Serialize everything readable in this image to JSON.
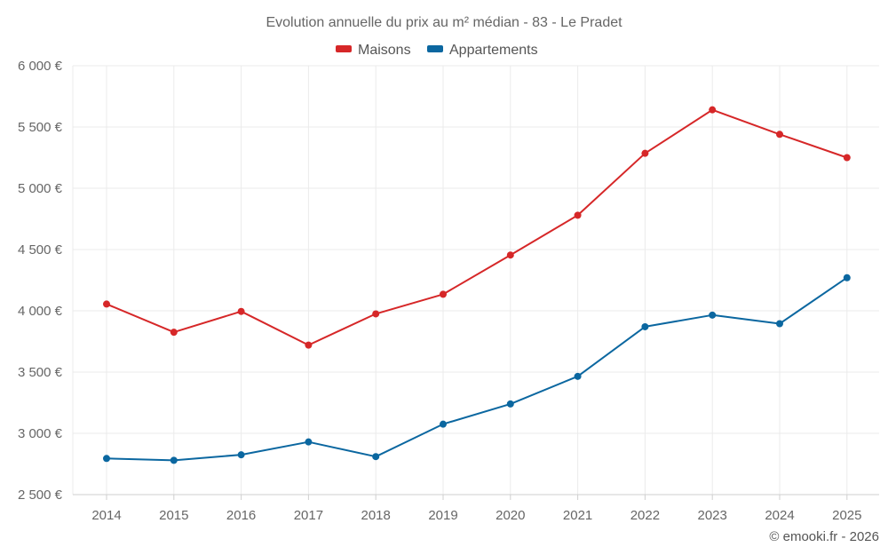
{
  "chart_data": {
    "type": "line",
    "title": "Evolution annuelle du prix au m² médian - 83 - Le Pradet",
    "categories": [
      "2014",
      "2015",
      "2016",
      "2017",
      "2018",
      "2019",
      "2020",
      "2021",
      "2022",
      "2023",
      "2024",
      "2025"
    ],
    "series": [
      {
        "name": "Maisons",
        "color": "#d62728",
        "values": [
          4055,
          3825,
          3995,
          3720,
          3975,
          4135,
          4455,
          4780,
          5285,
          5640,
          5440,
          5250
        ]
      },
      {
        "name": "Appartements",
        "color": "#0b67a0",
        "values": [
          2795,
          2780,
          2825,
          2930,
          2810,
          3075,
          3240,
          3465,
          3870,
          3965,
          3895,
          4270
        ]
      }
    ],
    "ylim": [
      2500,
      6000
    ],
    "yticks": [
      2500,
      3000,
      3500,
      4000,
      4500,
      5000,
      5500,
      6000
    ],
    "ytick_labels": [
      "2 500 €",
      "3 000 €",
      "3 500 €",
      "4 000 €",
      "4 500 €",
      "5 000 €",
      "5 500 €",
      "6 000 €"
    ],
    "xlabel": "",
    "ylabel": "",
    "grid": true,
    "legend_position": "top-center"
  },
  "credit": "© emooki.fr - 2026"
}
